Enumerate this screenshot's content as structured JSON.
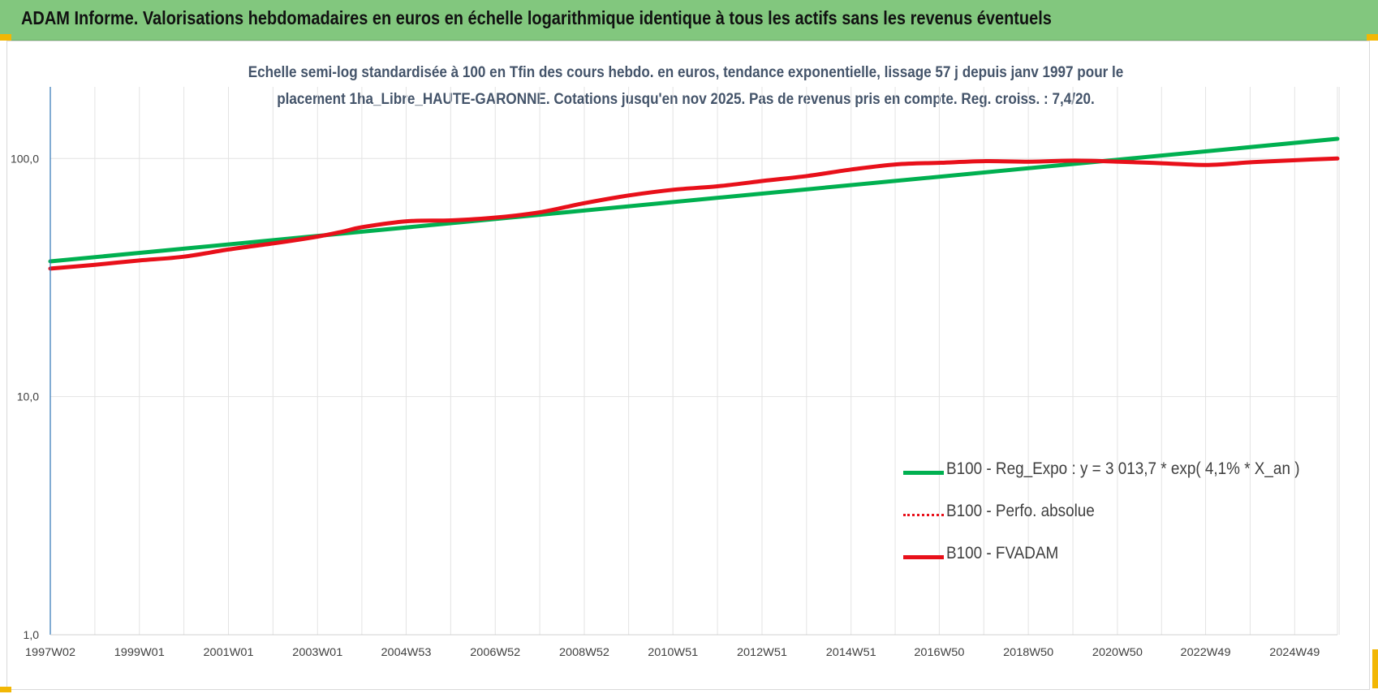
{
  "banner": {
    "title": "ADAM Informe. Valorisations hebdomadaires en euros en échelle logarithmique identique à tous les actifs sans les revenus éventuels"
  },
  "chart_data": {
    "type": "line",
    "title_line1": "Echelle semi-log standardisée à 100 en Tfin des cours hebdo. en euros, tendance exponentielle, lissage 57 j depuis janv 1997 pour le",
    "title_line2": "placement 1ha_Libre_HAUTE-GARONNE. Cotations jusqu'en nov 2025. Pas de revenus pris en compte. Reg. croiss. : 7,4/20.",
    "y_scale": "log",
    "ylim": [
      1,
      200
    ],
    "y_ticks": [
      1,
      10,
      100
    ],
    "y_tick_labels": [
      "1,0",
      "10,0",
      "100,0"
    ],
    "x_range": [
      1997.0,
      2025.9
    ],
    "x_ticks": [
      1997.0,
      1999.0,
      2001.0,
      2003.0,
      2004.99,
      2006.99,
      2008.99,
      2010.98,
      2012.98,
      2014.98,
      2016.96,
      2018.96,
      2020.96,
      2022.94,
      2024.94
    ],
    "x_tick_labels": [
      "1997W02",
      "1999W01",
      "2001W01",
      "2003W01",
      "2004W53",
      "2006W52",
      "2008W52",
      "2010W51",
      "2012W51",
      "2014W51",
      "2016W50",
      "2018W50",
      "2020W50",
      "2022W49",
      "2024W49"
    ],
    "grid": "vertical and horizontal",
    "legend_position": "bottom-right",
    "series": [
      {
        "name": "B100 - Reg_Expo : y = 3 013,7 * exp( 4,1% *  X_an )",
        "color": "#00b050",
        "style": "solid",
        "x": [
          1997.0,
          2025.9
        ],
        "y": [
          37.0,
          121.0
        ]
      },
      {
        "name": "B100 - Perfo. absolue",
        "color": "#e8101a",
        "style": "dotted",
        "x": [],
        "y": []
      },
      {
        "name": "B100 - FVADAM",
        "color": "#e8101a",
        "style": "solid",
        "x": [
          1997.0,
          1998.0,
          1999.0,
          2000.0,
          2001.0,
          2002.0,
          2003.0,
          2003.6,
          2004.0,
          2005.0,
          2006.0,
          2007.0,
          2008.0,
          2009.0,
          2010.0,
          2011.0,
          2012.0,
          2013.0,
          2014.0,
          2015.0,
          2016.0,
          2017.0,
          2018.0,
          2019.0,
          2020.0,
          2021.0,
          2022.0,
          2023.0,
          2024.0,
          2025.0,
          2025.9
        ],
        "y": [
          34.5,
          35.8,
          37.3,
          38.7,
          41.5,
          44.0,
          47.0,
          49.5,
          51.5,
          54.5,
          55.0,
          56.5,
          59.5,
          65.0,
          70.0,
          74.0,
          76.5,
          80.5,
          84.5,
          90.0,
          94.5,
          96.0,
          97.5,
          97.0,
          98.0,
          97.0,
          95.5,
          94.0,
          96.5,
          98.5,
          100.0
        ]
      }
    ]
  }
}
